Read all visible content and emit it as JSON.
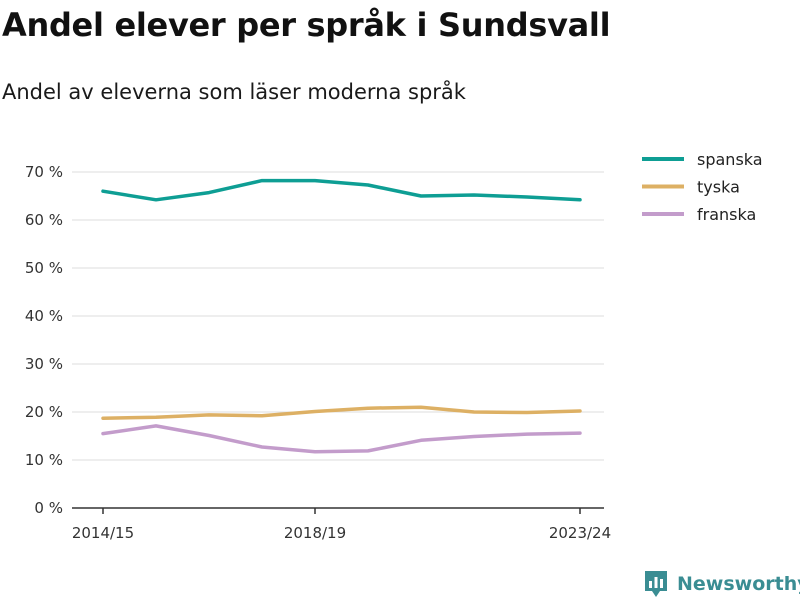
{
  "title": "Andel elever per språk i Sundsvall",
  "subtitle": "Andel av eleverna som läser moderna språk",
  "brand": {
    "name": "Newsworthy",
    "icon": "newsworthy-logo-icon",
    "color": "#3a8d93"
  },
  "chart_data": {
    "type": "line",
    "title": "Andel elever per språk i Sundsvall",
    "subtitle": "Andel av eleverna som läser moderna språk",
    "xlabel": "",
    "ylabel": "",
    "ylim": [
      0,
      70
    ],
    "yticks": [
      0,
      10,
      20,
      30,
      40,
      50,
      60,
      70
    ],
    "ytick_labels": [
      "0 %",
      "10 %",
      "20 %",
      "30 %",
      "40 %",
      "50 %",
      "60 %",
      "70 %"
    ],
    "x": [
      "2014/15",
      "2015/16",
      "2016/17",
      "2017/18",
      "2018/19",
      "2019/20",
      "2020/21",
      "2021/22",
      "2022/23",
      "2023/24"
    ],
    "xtick_labels": [
      "2014/15",
      "2018/19",
      "2023/24"
    ],
    "grid": true,
    "legend_position": "top-right",
    "series": [
      {
        "name": "spanska",
        "color": "#0e9e94",
        "values": [
          66.0,
          64.2,
          65.7,
          68.2,
          68.2,
          67.3,
          65.0,
          65.2,
          64.8,
          64.2
        ]
      },
      {
        "name": "tyska",
        "color": "#ddb064",
        "values": [
          18.7,
          18.9,
          19.4,
          19.2,
          20.1,
          20.8,
          21.0,
          20.0,
          19.9,
          20.2
        ]
      },
      {
        "name": "franska",
        "color": "#c39ccb",
        "values": [
          15.5,
          17.1,
          15.1,
          12.7,
          11.7,
          11.9,
          14.1,
          14.9,
          15.4,
          15.6
        ]
      }
    ]
  }
}
